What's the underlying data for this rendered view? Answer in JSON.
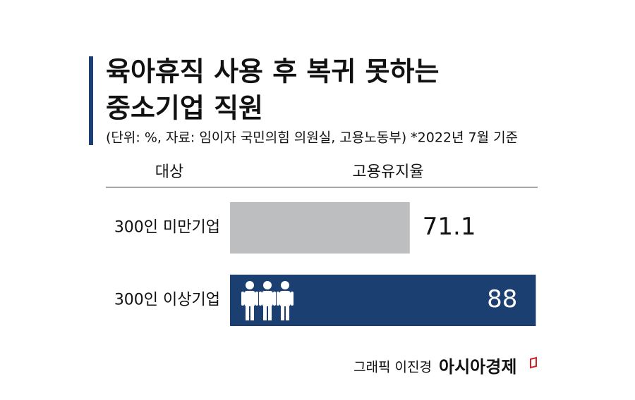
{
  "chart_data": {
    "type": "bar",
    "orientation": "horizontal",
    "title": [
      "육아휴직 사용 후 복귀 못하는",
      "중소기업 직원"
    ],
    "subtitle": "(단위: %, 자료: 임이자 국민의힘 의원실, 고용노동부)  *2022년 7월 기준",
    "category_header": "대상",
    "value_header": "고용유지율",
    "categories": [
      "300인 미만기업",
      "300인 이상기업"
    ],
    "values": [
      71.1,
      88
    ],
    "colors": [
      "#bdbec0",
      "#1c3f72"
    ],
    "xlim": [
      47,
      89
    ],
    "credit": "그래픽 이진경",
    "source_logo": "아시아경제"
  }
}
